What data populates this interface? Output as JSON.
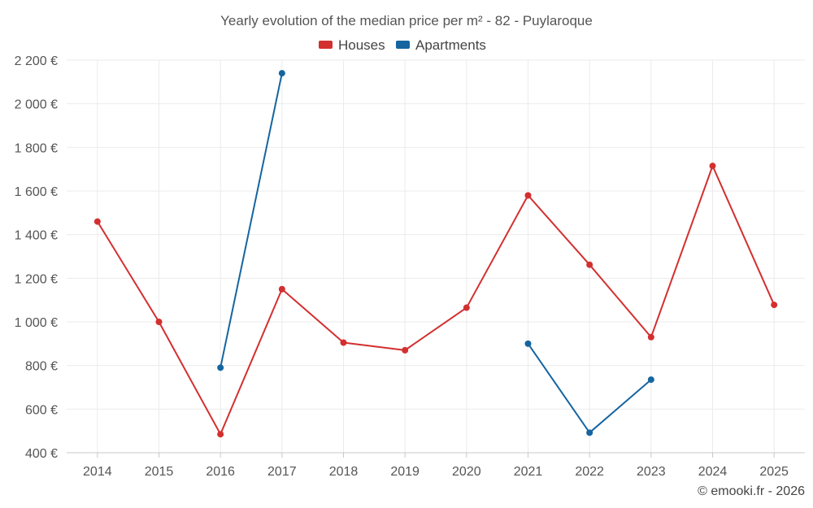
{
  "chart_data": {
    "type": "line",
    "title": "Yearly evolution of the median price per m² - 82 - Puylaroque",
    "categories": [
      "2014",
      "2015",
      "2016",
      "2017",
      "2018",
      "2019",
      "2020",
      "2021",
      "2022",
      "2023",
      "2024",
      "2025"
    ],
    "series": [
      {
        "name": "Houses",
        "color": "#d32f2f",
        "values": [
          1460,
          1000,
          485,
          1150,
          905,
          870,
          1065,
          1580,
          1262,
          930,
          1715,
          1078
        ]
      },
      {
        "name": "Apartments",
        "color": "#1565a0",
        "values": [
          null,
          null,
          790,
          2140,
          null,
          null,
          null,
          900,
          492,
          735,
          null,
          null
        ]
      }
    ],
    "yticks": [
      400,
      600,
      800,
      1000,
      1200,
      1400,
      1600,
      1800,
      2000,
      2200
    ],
    "ytick_labels": [
      "400 €",
      "600 €",
      "800 €",
      "1 000 €",
      "1 200 €",
      "1 400 €",
      "1 600 €",
      "1 800 €",
      "2 000 €",
      "2 200 €"
    ],
    "ylim": [
      400,
      2200
    ],
    "xlabel": "",
    "ylabel": "",
    "grid": true,
    "legend_position": "top-center"
  },
  "credit": "© emooki.fr - 2026"
}
